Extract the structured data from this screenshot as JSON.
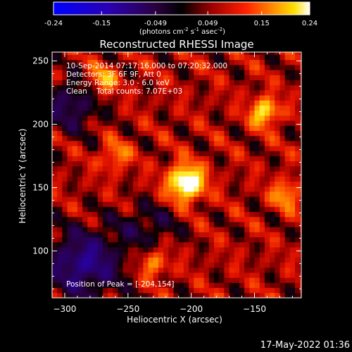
{
  "colorbar": {
    "ticks": [
      "-0.24",
      "-0.15",
      "-0.049",
      "0.049",
      "0.15",
      "0.24"
    ],
    "tick_values": [
      -0.24,
      -0.15,
      -0.049,
      0.049,
      0.15,
      0.24
    ],
    "range": [
      -0.24,
      0.24
    ],
    "units_prefix": "(photons cm",
    "units_exp1": "-2",
    "units_mid": " s",
    "units_exp2": "-1",
    "units_mid2": " asec",
    "units_exp3": "-2",
    "units_suffix": ")"
  },
  "chart_data": {
    "type": "heatmap",
    "title": "Reconstructed RHESSI Image",
    "xlabel": "Heliocentric X (arcsec)",
    "ylabel": "Heliocentric Y (arcsec)",
    "xlim": [
      -310,
      -113
    ],
    "ylim": [
      63,
      257
    ],
    "xticks": [
      -300,
      -250,
      -200,
      -150
    ],
    "xtick_labels": [
      "−300",
      "−250",
      "−200",
      "−150"
    ],
    "yticks": [
      100,
      150,
      200,
      250
    ],
    "ytick_labels": [
      "100",
      "150",
      "200",
      "250"
    ],
    "peak": {
      "x": -204,
      "y": 154,
      "value": 0.24
    },
    "secondary_sources": [
      {
        "x": -142,
        "y": 210,
        "value": 0.17
      },
      {
        "x": -270,
        "y": 235,
        "value": 0.13
      },
      {
        "x": -125,
        "y": 145,
        "value": 0.12
      },
      {
        "x": -260,
        "y": 175,
        "value": 0.1
      },
      {
        "x": -230,
        "y": 90,
        "value": 0.11
      }
    ],
    "annotations": [
      "10-Sep-2014 07:17:16.000 to 07:20:32.000",
      "Detectors: 3F 6F 9F, Att 0",
      "Energy Range: 3.0 - 6.0 keV",
      "Clean    Total counts: 7.07E+03"
    ],
    "peak_label": "Position of Peak = [-204,154]",
    "colormap": "RHESSI (blue-black-red-yellow-white)"
  },
  "footer": {
    "date": "17-May-2022 01:36"
  }
}
